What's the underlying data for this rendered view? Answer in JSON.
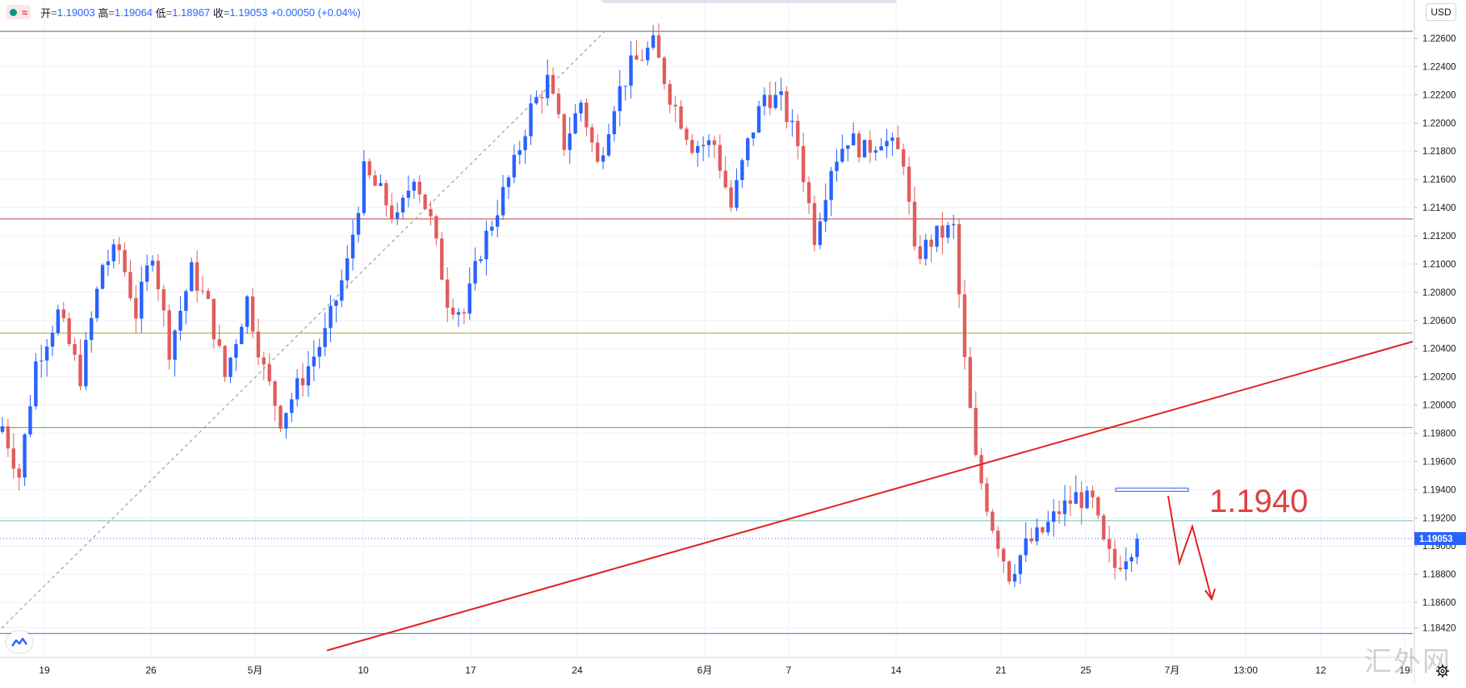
{
  "legend": {
    "open_label": "开",
    "open": "1.19003",
    "high_label": "高",
    "high": "1.19064",
    "low_label": "低",
    "low": "1.18967",
    "close_label": "收",
    "close": "1.19053",
    "change": "+0.00050 (+0.04%)"
  },
  "currency": "USD",
  "watermark": "汇外网",
  "colors": {
    "up": "#2962ff",
    "down": "#e25c5c",
    "red_level": "#c0504d",
    "olive_level": "#b5b84a",
    "green_level": "#6bbf59",
    "teal_level": "#7ec8c8",
    "blue_level": "#5b8fd6",
    "gray_level": "#7f7f7f",
    "drawing_red": "#e02020",
    "price_tag": "#2962ff"
  },
  "chart_data": {
    "type": "candlestick",
    "symbol_unit": "USD",
    "y_range": [
      1.183,
      1.2278
    ],
    "y_ticks": [
      "1.22600",
      "1.22400",
      "1.22200",
      "1.22000",
      "1.21800",
      "1.21600",
      "1.21400",
      "1.21200",
      "1.21000",
      "1.20800",
      "1.20600",
      "1.20400",
      "1.20200",
      "1.20000",
      "1.19800",
      "1.19600",
      "1.19400",
      "1.19200",
      "1.19000",
      "1.18800",
      "1.18600",
      "1.18420"
    ],
    "x_ticks": [
      "19",
      "26",
      "5月",
      "10",
      "17",
      "24",
      "6月",
      "7",
      "14",
      "21",
      "25",
      "7月",
      "13:00",
      "12",
      "19"
    ],
    "last_price": "1.19053",
    "annotation": "1.1940",
    "horizontal_levels": [
      {
        "price": 1.2265,
        "color_key": "gray_level"
      },
      {
        "price": 1.2132,
        "color_key": "red_level"
      },
      {
        "price": 1.2051,
        "color_key": "olive_level"
      },
      {
        "price": 1.1984,
        "color_key": "green_level"
      },
      {
        "price": 1.1918,
        "color_key": "teal_level"
      },
      {
        "price": 1.1838,
        "color_key": "blue_level"
      }
    ],
    "trendline_price_start": 1.1826,
    "trendline_price_end": 1.2045,
    "anchor_closes": [
      [
        0,
        1.1985
      ],
      [
        3,
        1.195
      ],
      [
        6,
        1.203
      ],
      [
        10,
        1.2065
      ],
      [
        14,
        1.202
      ],
      [
        18,
        1.21
      ],
      [
        21,
        1.211
      ],
      [
        24,
        1.2065
      ],
      [
        27,
        1.211
      ],
      [
        30,
        1.204
      ],
      [
        34,
        1.2095
      ],
      [
        37,
        1.207
      ],
      [
        40,
        1.202
      ],
      [
        44,
        1.2075
      ],
      [
        47,
        1.2025
      ],
      [
        50,
        1.199
      ],
      [
        54,
        1.202
      ],
      [
        58,
        1.205
      ],
      [
        62,
        1.21
      ],
      [
        65,
        1.2165
      ],
      [
        68,
        1.215
      ],
      [
        71,
        1.213
      ],
      [
        74,
        1.2165
      ],
      [
        77,
        1.213
      ],
      [
        80,
        1.2075
      ],
      [
        83,
        1.2065
      ],
      [
        86,
        1.211
      ],
      [
        89,
        1.214
      ],
      [
        92,
        1.217
      ],
      [
        95,
        1.221
      ],
      [
        98,
        1.223
      ],
      [
        101,
        1.2185
      ],
      [
        104,
        1.2215
      ],
      [
        107,
        1.217
      ],
      [
        110,
        1.2215
      ],
      [
        113,
        1.224
      ],
      [
        117,
        1.2255
      ],
      [
        120,
        1.222
      ],
      [
        124,
        1.2185
      ],
      [
        128,
        1.2185
      ],
      [
        131,
        1.214
      ],
      [
        134,
        1.2185
      ],
      [
        137,
        1.222
      ],
      [
        140,
        1.2215
      ],
      [
        143,
        1.2185
      ],
      [
        146,
        1.212
      ],
      [
        149,
        1.217
      ],
      [
        152,
        1.219
      ],
      [
        155,
        1.218
      ],
      [
        158,
        1.219
      ],
      [
        162,
        1.2175
      ],
      [
        164,
        1.2105
      ],
      [
        168,
        1.212
      ],
      [
        171,
        1.2125
      ],
      [
        173,
        1.203
      ],
      [
        175,
        1.196
      ],
      [
        178,
        1.1915
      ],
      [
        181,
        1.188
      ],
      [
        184,
        1.19
      ],
      [
        187,
        1.191
      ],
      [
        190,
        1.1925
      ],
      [
        193,
        1.1935
      ],
      [
        196,
        1.193
      ],
      [
        198,
        1.19
      ],
      [
        200,
        1.1885
      ],
      [
        202,
        1.1895
      ],
      [
        204,
        1.19053
      ]
    ]
  }
}
